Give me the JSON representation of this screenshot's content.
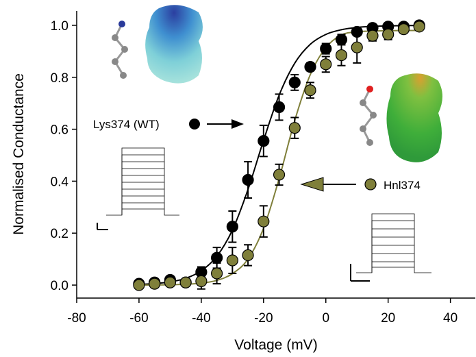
{
  "chart_data": {
    "type": "scatter",
    "x_label": "Voltage (mV)",
    "y_label": "Normalised Conductance",
    "xlim": [
      -80,
      48
    ],
    "xticks": [
      -80,
      -60,
      -40,
      -20,
      0,
      20,
      40
    ],
    "ylim": [
      -0.05,
      1.05
    ],
    "yticks": [
      {
        "value": 0,
        "label": "0.0"
      },
      0.2,
      0.4,
      0.6,
      0.8,
      {
        "value": 1,
        "label": "1.0"
      }
    ],
    "series": [
      {
        "name": "Lys374 (WT)",
        "color": "#000000",
        "x": [
          -60,
          -55,
          -50,
          -45,
          -40,
          -35,
          -30,
          -25,
          -20,
          -15,
          -10,
          -5,
          0,
          5,
          10,
          15,
          20,
          25,
          30
        ],
        "values": [
          0.005,
          0.01,
          0.02,
          0.01,
          0.05,
          0.105,
          0.225,
          0.405,
          0.555,
          0.685,
          0.78,
          0.84,
          0.91,
          0.945,
          0.975,
          0.99,
          0.995,
          0.995,
          1.0
        ],
        "errors": [
          0.01,
          0.01,
          0.01,
          0.01,
          0.02,
          0.04,
          0.06,
          0.07,
          0.06,
          0.05,
          0.03,
          0.015,
          0.02,
          0.02,
          0.01,
          0.01,
          0.01,
          0.01,
          0.01
        ],
        "fit": {
          "x": [
            -60,
            -55,
            -50,
            -45,
            -40,
            -35,
            -30,
            -25,
            -20,
            -15,
            -10,
            -5,
            0,
            5,
            10,
            15,
            20,
            25,
            30
          ],
          "values": [
            0.0027,
            0.0058,
            0.0124,
            0.026,
            0.055,
            0.111,
            0.212,
            0.368,
            0.557,
            0.731,
            0.854,
            0.927,
            0.965,
            0.983,
            0.992,
            0.996,
            0.998,
            0.999,
            0.999
          ]
        }
      },
      {
        "name": "Hnl374",
        "color": "#7f7f3a",
        "x": [
          -60,
          -55,
          -50,
          -45,
          -40,
          -35,
          -30,
          -25,
          -20,
          -15,
          -10,
          -5,
          0,
          5,
          10,
          15,
          20,
          25,
          30
        ],
        "values": [
          0.0,
          0.005,
          0.01,
          0.01,
          0.015,
          0.045,
          0.095,
          0.115,
          0.245,
          0.425,
          0.605,
          0.75,
          0.85,
          0.885,
          0.915,
          0.96,
          0.965,
          0.985,
          0.995
        ],
        "errors": [
          0.01,
          0.01,
          0.01,
          0.01,
          0.03,
          0.04,
          0.05,
          0.04,
          0.06,
          0.04,
          0.04,
          0.03,
          0.03,
          0.04,
          0.06,
          0.02,
          0.02,
          0.01,
          0.01
        ],
        "fit": {
          "x": [
            -60,
            -55,
            -50,
            -45,
            -40,
            -35,
            -30,
            -25,
            -20,
            -15,
            -10,
            -5,
            0,
            5,
            10,
            15,
            20,
            25,
            30
          ],
          "values": [
            0.0002,
            0.0005,
            0.0012,
            0.003,
            0.0073,
            0.018,
            0.044,
            0.1,
            0.219,
            0.41,
            0.633,
            0.81,
            0.914,
            0.963,
            0.975,
            0.978,
            0.979,
            0.98,
            0.98
          ]
        }
      }
    ]
  }
}
